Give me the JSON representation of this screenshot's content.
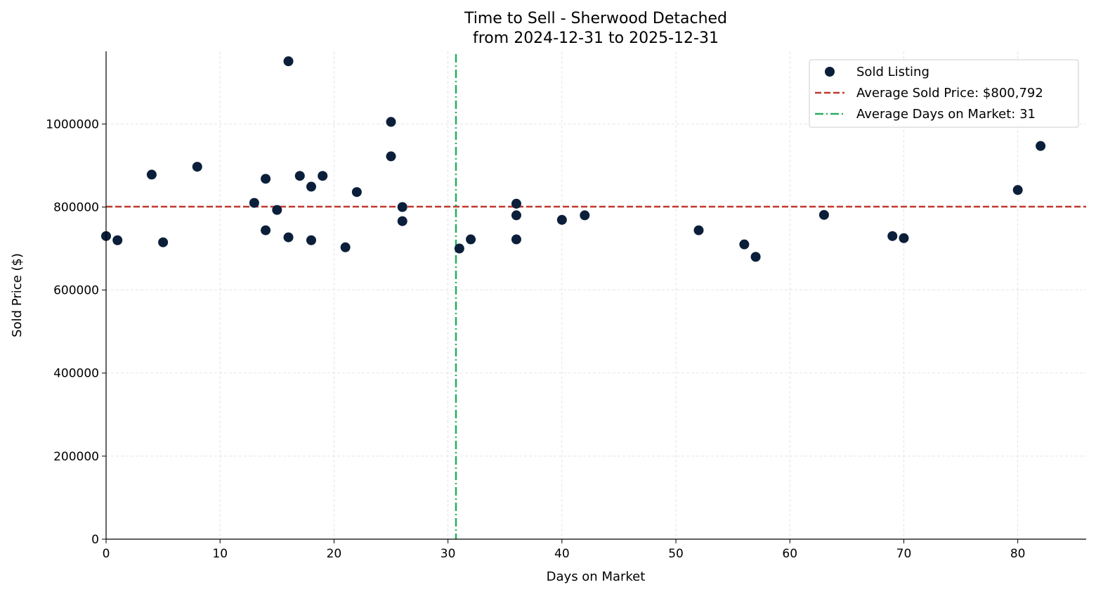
{
  "chart_data": {
    "type": "scatter",
    "title": "Time to Sell - Sherwood Detached",
    "subtitle": "from 2024-12-31 to 2025-12-31",
    "xlabel": "Days on Market",
    "ylabel": "Sold Price ($)",
    "xlim": [
      0,
      86
    ],
    "ylim": [
      0,
      1175000
    ],
    "xticks": [
      0,
      10,
      20,
      30,
      40,
      50,
      60,
      70,
      80
    ],
    "yticks": [
      0,
      200000,
      400000,
      600000,
      800000,
      1000000
    ],
    "grid": true,
    "legend_placement": "top-right",
    "series": [
      {
        "name": "Sold Listing",
        "color": "#0b1f3a",
        "points": [
          [
            0,
            730000
          ],
          [
            1,
            720000
          ],
          [
            4,
            878000
          ],
          [
            5,
            715000
          ],
          [
            8,
            897000
          ],
          [
            13,
            810000
          ],
          [
            14,
            868000
          ],
          [
            14,
            744000
          ],
          [
            15,
            793000
          ],
          [
            16,
            1151000
          ],
          [
            16,
            727000
          ],
          [
            17,
            875000
          ],
          [
            18,
            849000
          ],
          [
            18,
            720000
          ],
          [
            19,
            875000
          ],
          [
            21,
            703000
          ],
          [
            22,
            836000
          ],
          [
            25,
            1005000
          ],
          [
            25,
            922000
          ],
          [
            26,
            800000
          ],
          [
            26,
            766000
          ],
          [
            31,
            700000
          ],
          [
            32,
            722000
          ],
          [
            36,
            808000
          ],
          [
            36,
            780000
          ],
          [
            36,
            722000
          ],
          [
            40,
            769000
          ],
          [
            42,
            780000
          ],
          [
            52,
            744000
          ],
          [
            56,
            710000
          ],
          [
            57,
            680000
          ],
          [
            63,
            781000
          ],
          [
            69,
            730000
          ],
          [
            70,
            725000
          ],
          [
            80,
            841000
          ],
          [
            82,
            947000
          ]
        ]
      }
    ],
    "reference_lines": [
      {
        "name": "Average Sold Price: $800,792",
        "orientation": "horizontal",
        "value": 800792,
        "color": "#c0392b",
        "style": "dashed"
      },
      {
        "name": "Average Days on Market: 31",
        "orientation": "vertical",
        "value": 30.7,
        "color": "#27ae60",
        "style": "dashdot"
      }
    ]
  }
}
